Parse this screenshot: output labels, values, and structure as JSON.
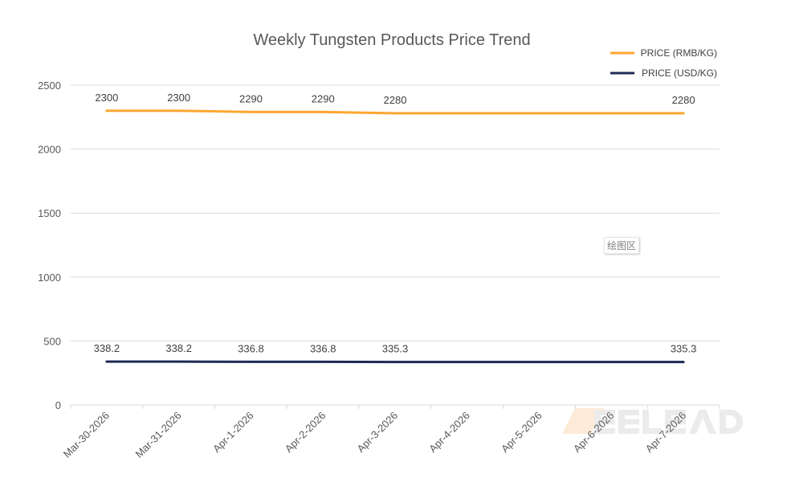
{
  "chart_data": {
    "type": "line",
    "title": "Weekly Tungsten Products Price Trend",
    "xlabel": "",
    "ylabel": "",
    "categories": [
      "Mar-30-2026",
      "Mar-31-2026",
      "Apr-1-2026",
      "Apr-2-2026",
      "Apr-3-2026",
      "Apr-4-2026",
      "Apr-5-2026",
      "Apr-6-2026",
      "Apr-7-2026"
    ],
    "ylim": [
      0,
      2500
    ],
    "yticks": [
      0,
      500,
      1000,
      1500,
      2000,
      2500
    ],
    "grid": true,
    "legend_position": "top-right",
    "series": [
      {
        "name": "PRICE (RMB/KG)",
        "color": "#FFA630",
        "values": [
          2300,
          2300,
          2290,
          2290,
          2280,
          2280,
          2280,
          2280,
          2280
        ],
        "data_labels": [
          "2300",
          "2300",
          "2290",
          "2290",
          "2280",
          null,
          null,
          null,
          "2280"
        ]
      },
      {
        "name": "PRICE (USD/KG)",
        "color": "#1F2A56",
        "values": [
          338.2,
          338.2,
          336.8,
          336.8,
          335.3,
          335.3,
          335.3,
          335.3,
          335.3
        ],
        "data_labels": [
          "338.2",
          "338.2",
          "336.8",
          "336.8",
          "335.3",
          null,
          null,
          null,
          "335.3"
        ]
      }
    ]
  },
  "tooltip": "绘图区",
  "watermark": "MEELEAD"
}
